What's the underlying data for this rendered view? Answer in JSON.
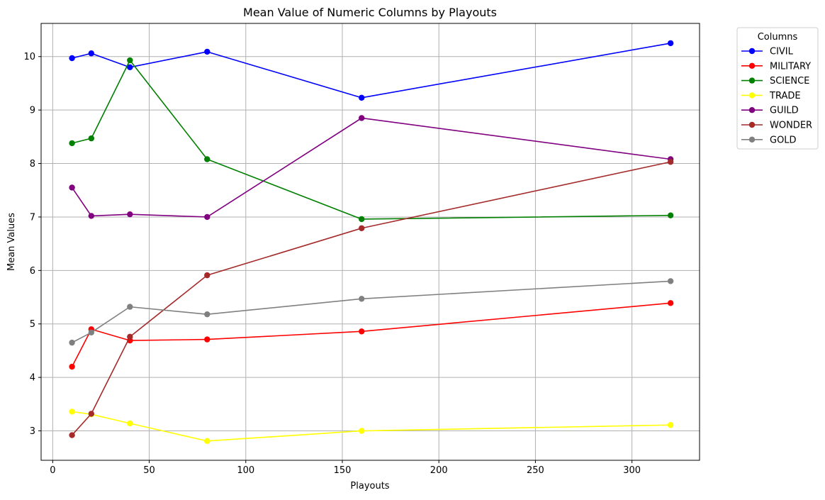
{
  "chart_data": {
    "type": "line",
    "title": "Mean Value of Numeric Columns by Playouts",
    "xlabel": "Playouts",
    "ylabel": "Mean Values",
    "xlim": [
      -6,
      335
    ],
    "ylim": [
      2.45,
      10.62
    ],
    "xticks": [
      0,
      50,
      100,
      150,
      200,
      250,
      300
    ],
    "yticks": [
      3,
      4,
      5,
      6,
      7,
      8,
      9,
      10
    ],
    "grid": true,
    "legend": {
      "title": "Columns",
      "placement": "outside-top-right"
    },
    "x": [
      10,
      20,
      40,
      80,
      160,
      320
    ],
    "series": [
      {
        "name": "CIVIL",
        "color": "#0000ff",
        "values": [
          9.97,
          10.06,
          9.8,
          10.09,
          9.23,
          10.25
        ]
      },
      {
        "name": "MILITARY",
        "color": "#ff0000",
        "values": [
          4.2,
          4.9,
          4.69,
          4.71,
          4.86,
          5.39
        ]
      },
      {
        "name": "SCIENCE",
        "color": "#008000",
        "values": [
          8.38,
          8.47,
          9.93,
          8.08,
          6.96,
          7.03
        ]
      },
      {
        "name": "TRADE",
        "color": "#ffff00",
        "values": [
          3.36,
          3.31,
          3.14,
          2.81,
          3.0,
          3.11
        ]
      },
      {
        "name": "GUILD",
        "color": "#800080",
        "values": [
          7.55,
          7.02,
          7.05,
          7.0,
          8.85,
          8.08
        ]
      },
      {
        "name": "WONDER",
        "color": "#a52a2a",
        "values": [
          2.92,
          3.32,
          4.76,
          5.91,
          6.79,
          8.03
        ]
      },
      {
        "name": "GOLD",
        "color": "#808080",
        "values": [
          4.65,
          4.84,
          5.32,
          5.18,
          5.47,
          5.8
        ]
      }
    ]
  }
}
